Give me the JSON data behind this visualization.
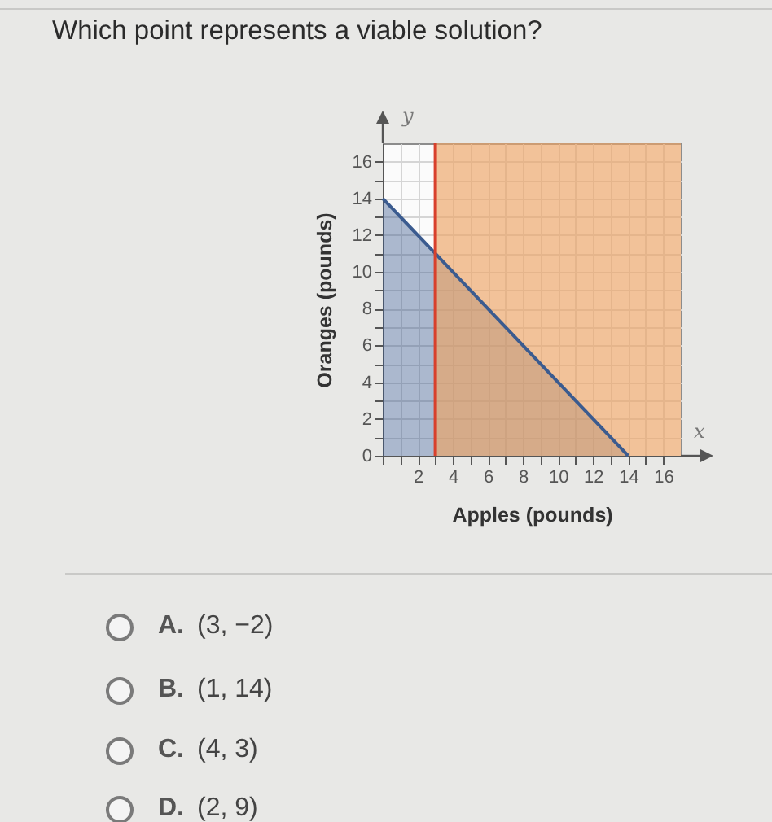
{
  "chart_data": {
    "type": "area",
    "title": "Which point represents a viable solution?",
    "xlabel": "Apples (pounds)",
    "ylabel": "Oranges (pounds)",
    "x": [
      0,
      14
    ],
    "series": [
      {
        "color": "#3b5b8f",
        "values": [
          14,
          0
        ]
      }
    ],
    "bands": [
      {
        "axis": "x",
        "from": 3,
        "to": 17,
        "color": "#eda465"
      }
    ],
    "ref_lines": [
      {
        "axis": "x",
        "value": 3,
        "color": "#d8402c"
      }
    ],
    "xlim": [
      0,
      17
    ],
    "ylim": [
      0,
      17
    ],
    "xticks": [
      {
        "value": 0,
        "label": null
      },
      {
        "value": 1,
        "label": null
      },
      2,
      {
        "value": 3,
        "label": null
      },
      4,
      {
        "value": 5,
        "label": null
      },
      6,
      {
        "value": 7,
        "label": null
      },
      8,
      {
        "value": 9,
        "label": null
      },
      10,
      {
        "value": 11,
        "label": null
      },
      12,
      {
        "value": 13,
        "label": null
      },
      14,
      {
        "value": 15,
        "label": null
      },
      16
    ],
    "yticks": [
      0,
      {
        "value": 1,
        "label": null
      },
      2,
      {
        "value": 3,
        "label": null
      },
      4,
      {
        "value": 5,
        "label": null
      },
      6,
      {
        "value": 7,
        "label": null
      },
      8,
      {
        "value": 9,
        "label": null
      },
      10,
      {
        "value": 11,
        "label": null
      },
      12,
      {
        "value": 13,
        "label": null
      },
      14,
      {
        "value": 15,
        "label": null
      },
      16
    ],
    "grid": true,
    "annotations": [
      "x",
      "y",
      "A. (3, −2)",
      "B. (1, 14)",
      "C. (4, 3)",
      "D. (2, 9)"
    ]
  }
}
